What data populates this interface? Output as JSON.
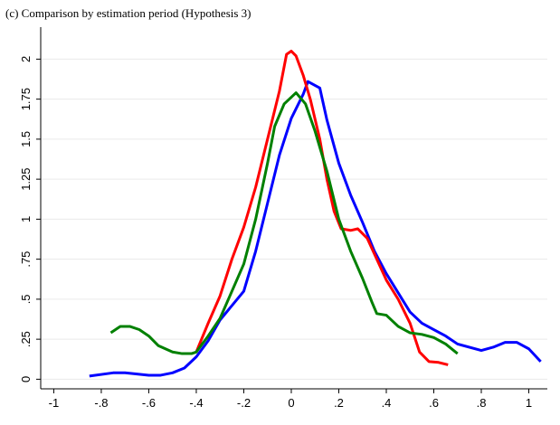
{
  "chart_data": {
    "type": "line",
    "title": "(c) Comparison by estimation period (Hypothesis 3)",
    "xlim": [
      -1.055,
      1.078
    ],
    "ylim": [
      -0.06,
      2.2
    ],
    "xticks": [
      -1,
      {
        "value": -0.8,
        "label": "-.8"
      },
      {
        "value": -0.6,
        "label": "-.6"
      },
      {
        "value": -0.4,
        "label": "-.4"
      },
      {
        "value": -0.2,
        "label": "-.2"
      },
      0,
      {
        "value": 0.2,
        "label": ".2"
      },
      {
        "value": 0.4,
        "label": ".4"
      },
      {
        "value": 0.6,
        "label": ".6"
      },
      {
        "value": 0.8,
        "label": ".8"
      },
      1
    ],
    "yticks": [
      0,
      {
        "value": 0.25,
        "label": ".25"
      },
      {
        "value": 0.5,
        "label": ".5"
      },
      {
        "value": 0.75,
        "label": ".75"
      },
      1,
      1.25,
      1.5,
      1.75,
      2
    ],
    "grid": true,
    "series": [
      {
        "color": "#0000ff",
        "x": [
          -0.85,
          -0.75,
          -0.7,
          -0.6,
          -0.55,
          -0.5,
          -0.45,
          -0.4,
          -0.35,
          -0.3,
          -0.2,
          -0.15,
          -0.1,
          -0.05,
          0,
          0.05,
          0.07,
          0.12,
          0.15,
          0.2,
          0.25,
          0.3,
          0.35,
          0.4,
          0.45,
          0.5,
          0.55,
          0.6,
          0.65,
          0.7,
          0.8,
          0.85,
          0.9,
          0.95,
          1.0,
          1.05
        ],
        "values": [
          0.02,
          0.04,
          0.04,
          0.025,
          0.025,
          0.04,
          0.07,
          0.14,
          0.24,
          0.37,
          0.55,
          0.8,
          1.1,
          1.4,
          1.63,
          1.78,
          1.86,
          1.82,
          1.62,
          1.35,
          1.15,
          0.98,
          0.8,
          0.66,
          0.54,
          0.42,
          0.35,
          0.31,
          0.27,
          0.22,
          0.18,
          0.2,
          0.23,
          0.23,
          0.19,
          0.11
        ]
      },
      {
        "color": "#ff0000",
        "x": [
          -0.4,
          -0.35,
          -0.3,
          -0.25,
          -0.2,
          -0.15,
          -0.1,
          -0.05,
          -0.02,
          0,
          0.02,
          0.05,
          0.08,
          0.12,
          0.15,
          0.18,
          0.21,
          0.25,
          0.28,
          0.32,
          0.36,
          0.4,
          0.45,
          0.5,
          0.54,
          0.58,
          0.62,
          0.66
        ],
        "values": [
          0.17,
          0.35,
          0.52,
          0.75,
          0.95,
          1.2,
          1.5,
          1.8,
          2.03,
          2.05,
          2.02,
          1.9,
          1.75,
          1.5,
          1.25,
          1.05,
          0.94,
          0.93,
          0.94,
          0.88,
          0.75,
          0.62,
          0.5,
          0.35,
          0.17,
          0.11,
          0.105,
          0.09
        ]
      },
      {
        "color": "#008000",
        "x": [
          -0.76,
          -0.72,
          -0.68,
          -0.64,
          -0.6,
          -0.56,
          -0.5,
          -0.46,
          -0.42,
          -0.4,
          -0.35,
          -0.3,
          -0.25,
          -0.2,
          -0.15,
          -0.1,
          -0.07,
          -0.03,
          0.02,
          0.06,
          0.1,
          0.15,
          0.2,
          0.25,
          0.3,
          0.34,
          0.36,
          0.4,
          0.45,
          0.5,
          0.55,
          0.6,
          0.65,
          0.7
        ],
        "values": [
          0.29,
          0.33,
          0.33,
          0.31,
          0.27,
          0.21,
          0.17,
          0.16,
          0.16,
          0.17,
          0.27,
          0.38,
          0.55,
          0.72,
          1.0,
          1.35,
          1.58,
          1.72,
          1.79,
          1.72,
          1.55,
          1.3,
          1.0,
          0.8,
          0.63,
          0.48,
          0.41,
          0.4,
          0.33,
          0.29,
          0.28,
          0.26,
          0.22,
          0.16
        ]
      }
    ]
  }
}
